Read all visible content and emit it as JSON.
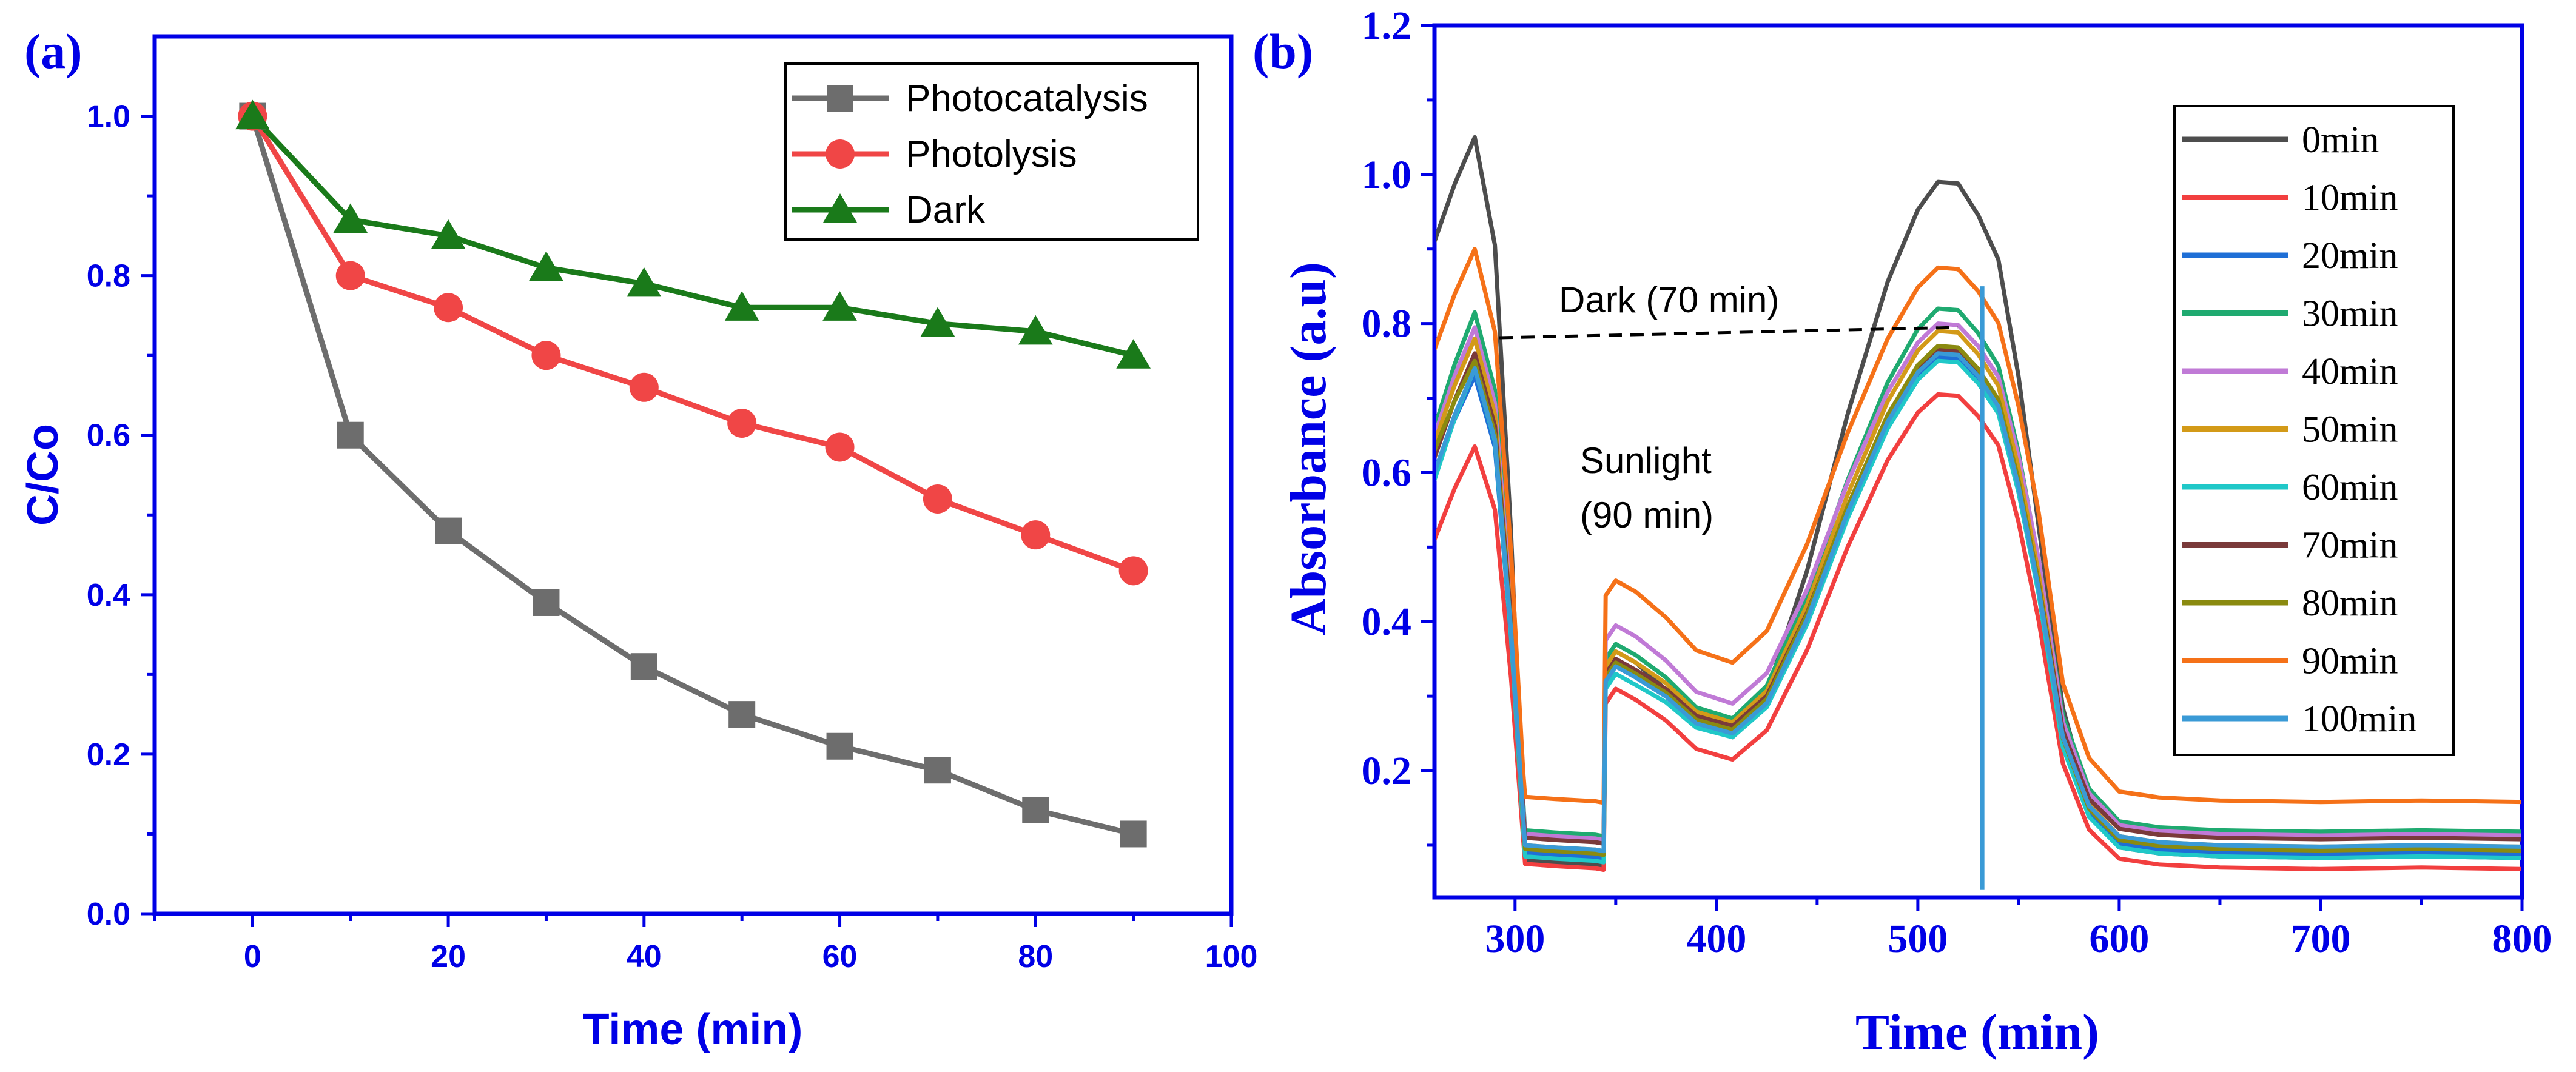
{
  "chart_data": [
    {
      "type": "line",
      "panel_label": "(a)",
      "title": "",
      "xlabel": "Time (min)",
      "ylabel": "C/Co",
      "xlim": [
        -10,
        100
      ],
      "ylim": [
        0,
        1.1
      ],
      "xticks": [
        "0",
        "20",
        "40",
        "60",
        "80",
        "100"
      ],
      "yticks": [
        "0.0",
        "0.2",
        "0.4",
        "0.6",
        "0.8",
        "1.0"
      ],
      "grid": false,
      "legend_position": "top-right",
      "x": [
        0,
        10,
        20,
        30,
        40,
        50,
        60,
        70,
        80,
        90
      ],
      "series": [
        {
          "name": "Photocatalysis",
          "color": "#6d6d6d",
          "marker": "square",
          "values": [
            1.0,
            0.6,
            0.48,
            0.39,
            0.31,
            0.25,
            0.21,
            0.18,
            0.13,
            0.1
          ]
        },
        {
          "name": "Photolysis",
          "color": "#f04646",
          "marker": "circle",
          "values": [
            1.0,
            0.8,
            0.76,
            0.7,
            0.66,
            0.615,
            0.585,
            0.52,
            0.475,
            0.43
          ]
        },
        {
          "name": "Dark",
          "color": "#1a7a1a",
          "marker": "triangle",
          "values": [
            1.0,
            0.87,
            0.85,
            0.81,
            0.79,
            0.76,
            0.76,
            0.74,
            0.73,
            0.7
          ]
        }
      ]
    },
    {
      "type": "line",
      "panel_label": "(b)",
      "title": "",
      "xlabel": "Time (min)",
      "ylabel": "Absorbance (a.u)",
      "xlim": [
        260,
        800
      ],
      "ylim": [
        0.03,
        1.2
      ],
      "xticks": [
        "300",
        "400",
        "500",
        "600",
        "700",
        "800"
      ],
      "yticks": [
        "0.2",
        "0.4",
        "0.6",
        "0.8",
        "1.0",
        "1.2"
      ],
      "grid": false,
      "legend_position": "right",
      "annotations": [
        {
          "text": "Dark (70 min)"
        },
        {
          "lines": [
            "Sunlight",
            "(90 min)"
          ]
        }
      ],
      "spike_x": 532,
      "series": [
        {
          "name": "0min",
          "color": "#4d4d4d",
          "peak1": 1.05,
          "peak2": 0.99,
          "plateau": 0.085,
          "trough": 0.245,
          "start": 0.91,
          "shoulder": 0.36,
          "dip": 0.08
        },
        {
          "name": "10min",
          "color": "#f23f3f",
          "peak1": 0.635,
          "peak2": 0.705,
          "plateau": 0.07,
          "trough": 0.215,
          "start": 0.51,
          "shoulder": 0.31,
          "dip": 0.075
        },
        {
          "name": "20min",
          "color": "#1f6fd6",
          "peak1": 0.73,
          "peak2": 0.755,
          "plateau": 0.09,
          "trough": 0.25,
          "start": 0.6,
          "shoulder": 0.34,
          "dip": 0.09
        },
        {
          "name": "30min",
          "color": "#1faa70",
          "peak1": 0.815,
          "peak2": 0.82,
          "plateau": 0.12,
          "trough": 0.27,
          "start": 0.66,
          "shoulder": 0.37,
          "dip": 0.12
        },
        {
          "name": "40min",
          "color": "#c07ad6",
          "peak1": 0.795,
          "peak2": 0.8,
          "plateau": 0.115,
          "trough": 0.29,
          "start": 0.65,
          "shoulder": 0.395,
          "dip": 0.115
        },
        {
          "name": "50min",
          "color": "#d39a18",
          "peak1": 0.78,
          "peak2": 0.79,
          "plateau": 0.1,
          "trough": 0.265,
          "start": 0.64,
          "shoulder": 0.36,
          "dip": 0.1
        },
        {
          "name": "60min",
          "color": "#20c8c8",
          "peak1": 0.74,
          "peak2": 0.75,
          "plateau": 0.085,
          "trough": 0.245,
          "start": 0.59,
          "shoulder": 0.33,
          "dip": 0.085
        },
        {
          "name": "70min",
          "color": "#7a3a3a",
          "peak1": 0.76,
          "peak2": 0.765,
          "plateau": 0.11,
          "trough": 0.26,
          "start": 0.62,
          "shoulder": 0.35,
          "dip": 0.11
        },
        {
          "name": "80min",
          "color": "#8a8a10",
          "peak1": 0.75,
          "peak2": 0.77,
          "plateau": 0.095,
          "trough": 0.255,
          "start": 0.63,
          "shoulder": 0.345,
          "dip": 0.095
        },
        {
          "name": "90min",
          "color": "#f57118",
          "peak1": 0.9,
          "peak2": 0.875,
          "plateau": 0.16,
          "trough": 0.345,
          "start": 0.765,
          "shoulder": 0.455,
          "dip": 0.165
        },
        {
          "name": "100min",
          "color": "#3a9ad6",
          "peak1": 0.74,
          "peak2": 0.76,
          "plateau": 0.1,
          "trough": 0.25,
          "start": 0.6,
          "shoulder": 0.34,
          "dip": 0.1
        }
      ]
    }
  ]
}
